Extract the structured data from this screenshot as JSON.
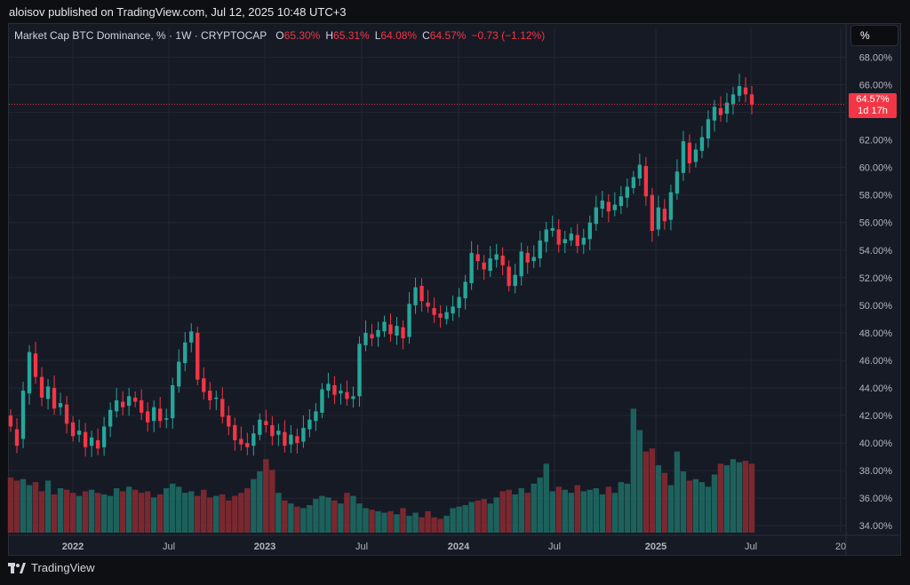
{
  "header": {
    "publisher_line": "aloisov published on TradingView.com, Jul 12, 2025 10:48 UTC+3"
  },
  "legend": {
    "symbol": "Market Cap BTC Dominance, % · 1W · CRYPTOCAP",
    "o_label": "O",
    "o_value": "65.30%",
    "h_label": "H",
    "h_value": "65.31%",
    "l_label": "L",
    "l_value": "64.08%",
    "c_label": "C",
    "c_value": "64.57%",
    "change": "−0.73 (−1.12%)"
  },
  "scale_button": {
    "label": "%"
  },
  "price_badge": {
    "price": "64.57%",
    "countdown": "1d 17h"
  },
  "footer": {
    "brand": "TradingView",
    "logo_icon": "tradingview-logo-icon"
  },
  "colors": {
    "up": "#26a69a",
    "down": "#f23645",
    "background": "#161a25",
    "grid": "#232733",
    "axis_text": "#b2b5be"
  },
  "chart_data": {
    "type": "candlestick",
    "title": "Market Cap BTC Dominance, % · 1W · CRYPTOCAP",
    "interval": "1W",
    "xlabel": "",
    "ylabel": "",
    "ylim": [
      33.5,
      68.8
    ],
    "y_ticks": [
      "34.00%",
      "36.00%",
      "38.00%",
      "40.00%",
      "42.00%",
      "44.00%",
      "46.00%",
      "48.00%",
      "50.00%",
      "52.00%",
      "54.00%",
      "56.00%",
      "58.00%",
      "60.00%",
      "62.00%",
      "64.00%",
      "66.00%",
      "68.00%"
    ],
    "x_ticks": [
      "2022",
      "Jul",
      "2023",
      "Jul",
      "2024",
      "Jul",
      "2025",
      "Jul",
      "20"
    ],
    "grid": true,
    "last_price": 64.57,
    "series": [
      {
        "name": "",
        "values": [
          [
            42.0,
            41.2
          ],
          [
            41.0,
            39.8
          ],
          [
            40.3,
            43.8
          ],
          [
            43.6,
            46.6
          ],
          [
            46.5,
            44.8
          ],
          [
            44.8,
            43.3
          ],
          [
            43.2,
            44.1
          ],
          [
            44.0,
            42.5
          ],
          [
            42.6,
            42.9
          ],
          [
            42.8,
            41.4
          ],
          [
            41.5,
            40.5
          ],
          [
            40.6,
            40.9
          ],
          [
            40.8,
            39.7
          ],
          [
            39.8,
            40.4
          ],
          [
            40.2,
            39.6
          ],
          [
            39.7,
            41.2
          ],
          [
            41.2,
            42.4
          ],
          [
            42.3,
            43.1
          ],
          [
            43.0,
            42.6
          ],
          [
            42.7,
            43.4
          ],
          [
            43.3,
            43.0
          ],
          [
            43.1,
            42.2
          ],
          [
            42.3,
            41.5
          ],
          [
            41.6,
            42.6
          ],
          [
            42.5,
            41.6
          ],
          [
            41.7,
            41.8
          ],
          [
            41.8,
            44.2
          ],
          [
            44.1,
            45.9
          ],
          [
            45.8,
            47.3
          ],
          [
            47.3,
            48.1
          ],
          [
            48.0,
            44.6
          ],
          [
            44.7,
            43.7
          ],
          [
            43.8,
            43.1
          ],
          [
            43.2,
            43.3
          ],
          [
            43.2,
            41.9
          ],
          [
            42.0,
            41.2
          ],
          [
            41.3,
            40.2
          ],
          [
            40.3,
            39.9
          ],
          [
            40.0,
            39.7
          ],
          [
            39.8,
            40.7
          ],
          [
            40.6,
            41.7
          ],
          [
            41.6,
            41.3
          ],
          [
            41.3,
            40.5
          ],
          [
            40.6,
            40.9
          ],
          [
            40.8,
            39.8
          ],
          [
            39.9,
            40.6
          ],
          [
            40.5,
            40.0
          ],
          [
            40.1,
            41.1
          ],
          [
            41.0,
            41.7
          ],
          [
            41.6,
            42.3
          ],
          [
            42.2,
            43.9
          ],
          [
            43.8,
            44.3
          ],
          [
            44.2,
            43.5
          ],
          [
            43.6,
            43.8
          ],
          [
            43.7,
            43.2
          ],
          [
            43.2,
            43.4
          ],
          [
            43.4,
            47.2
          ],
          [
            47.1,
            48.0
          ],
          [
            47.9,
            47.6
          ],
          [
            47.7,
            48.2
          ],
          [
            48.1,
            48.8
          ],
          [
            48.6,
            47.9
          ],
          [
            47.8,
            48.5
          ],
          [
            48.4,
            47.6
          ],
          [
            47.7,
            50.1
          ],
          [
            50.0,
            51.3
          ],
          [
            51.4,
            50.3
          ],
          [
            50.2,
            49.9
          ],
          [
            49.8,
            49.3
          ],
          [
            49.4,
            49.1
          ],
          [
            49.0,
            49.5
          ],
          [
            49.4,
            49.9
          ],
          [
            49.8,
            50.6
          ],
          [
            50.5,
            51.7
          ],
          [
            51.6,
            53.8
          ],
          [
            53.7,
            53.2
          ],
          [
            53.1,
            52.6
          ],
          [
            52.5,
            53.4
          ],
          [
            53.3,
            53.7
          ],
          [
            53.6,
            52.9
          ],
          [
            52.8,
            51.4
          ],
          [
            51.4,
            52.2
          ],
          [
            52.1,
            53.9
          ],
          [
            53.8,
            53.1
          ],
          [
            53.2,
            53.5
          ],
          [
            53.4,
            54.7
          ],
          [
            54.6,
            55.5
          ],
          [
            55.4,
            55.6
          ],
          [
            55.5,
            54.4
          ],
          [
            54.5,
            54.8
          ],
          [
            54.7,
            55.2
          ],
          [
            55.1,
            54.3
          ],
          [
            54.4,
            54.9
          ],
          [
            54.8,
            56.0
          ],
          [
            55.9,
            57.1
          ],
          [
            57.0,
            57.6
          ],
          [
            57.5,
            56.8
          ],
          [
            56.9,
            57.3
          ],
          [
            57.2,
            57.9
          ],
          [
            57.8,
            58.6
          ],
          [
            58.5,
            59.3
          ],
          [
            59.2,
            60.2
          ],
          [
            60.1,
            57.9
          ],
          [
            58.0,
            55.4
          ],
          [
            55.5,
            57.1
          ],
          [
            57.0,
            56.1
          ],
          [
            56.2,
            58.2
          ],
          [
            58.1,
            59.7
          ],
          [
            59.6,
            61.9
          ],
          [
            61.8,
            60.3
          ],
          [
            60.4,
            61.3
          ],
          [
            61.2,
            62.2
          ],
          [
            62.1,
            63.5
          ],
          [
            63.4,
            64.4
          ],
          [
            64.3,
            63.8
          ],
          [
            63.9,
            64.7
          ],
          [
            64.6,
            65.3
          ],
          [
            65.2,
            65.9
          ],
          [
            65.8,
            65.3
          ],
          [
            65.3,
            64.57
          ]
        ]
      },
      {
        "name": "",
        "values": [
          37.1,
          36.9,
          37.0,
          36.6,
          36.8,
          36.2,
          36.9,
          36.0,
          36.4,
          36.3,
          36.1,
          35.9,
          36.2,
          36.3,
          36.1,
          36.0,
          35.9,
          36.4,
          36.2,
          36.5,
          36.3,
          36.1,
          36.2,
          35.8,
          36.0,
          36.4,
          36.7,
          36.5,
          36.1,
          36.2,
          35.9,
          36.3,
          35.8,
          35.9,
          36.0,
          35.6,
          35.9,
          36.1,
          36.4,
          37.0,
          37.5,
          38.3,
          37.6,
          36.1,
          35.6,
          35.4,
          35.2,
          35.1,
          35.3,
          35.7,
          35.9,
          35.8,
          35.6,
          35.4,
          36.1,
          35.9,
          35.4,
          35.1,
          35.0,
          34.9,
          34.8,
          34.9,
          34.7,
          35.1,
          34.6,
          34.8,
          34.5,
          34.9,
          34.5,
          34.4,
          34.6,
          35.1,
          35.2,
          35.3,
          35.5,
          35.6,
          35.7,
          35.4,
          35.8,
          36.2,
          36.3,
          36.0,
          36.4,
          36.1,
          36.7,
          37.1,
          38.0,
          36.2,
          36.5,
          36.3,
          36.1,
          36.6,
          36.2,
          36.3,
          36.4,
          36.0,
          36.5,
          36.1,
          36.8,
          36.7,
          41.6,
          40.2,
          38.8,
          39.0,
          37.9,
          37.4,
          36.6,
          38.8,
          37.5,
          36.9,
          37.0,
          36.8,
          36.5,
          37.3,
          38.0,
          37.9,
          38.3,
          38.1,
          38.2,
          38.0
        ]
      }
    ]
  }
}
